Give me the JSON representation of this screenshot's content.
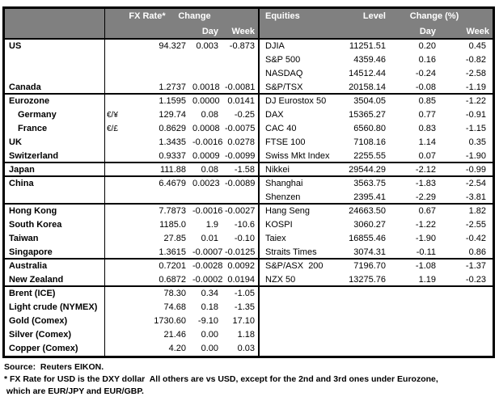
{
  "colors": {
    "header_bg": "#808080",
    "header_text": "#ffffff",
    "border": "#000000",
    "text": "#000000",
    "background": "#ffffff"
  },
  "fx_table": {
    "header": {
      "rate": "FX Rate*",
      "change": "Change",
      "day": "Day",
      "week": "Week"
    },
    "group_end_rows": [
      3,
      8,
      9,
      11,
      15,
      17
    ],
    "rows": [
      {
        "name": "US",
        "sym": "",
        "rate": "94.327",
        "day": "0.003",
        "week": "-0.873"
      },
      {
        "name": "",
        "sym": "",
        "rate": "",
        "day": "",
        "week": ""
      },
      {
        "name": "",
        "sym": "",
        "rate": "",
        "day": "",
        "week": ""
      },
      {
        "name": "Canada",
        "sym": "",
        "rate": "1.2737",
        "day": "0.0018",
        "week": "-0.0081"
      },
      {
        "name": "Eurozone",
        "sym": "",
        "rate": "1.1595",
        "day": "0.0000",
        "week": "0.0141"
      },
      {
        "name": "Germany",
        "sym": "€/¥",
        "rate": "129.74",
        "day": "0.08",
        "week": "-0.25",
        "indent": true
      },
      {
        "name": "France",
        "sym": "€/£",
        "rate": "0.8629",
        "day": "0.0008",
        "week": "-0.0075",
        "indent": true
      },
      {
        "name": "UK",
        "sym": "",
        "rate": "1.3435",
        "day": "-0.0016",
        "week": "0.0278"
      },
      {
        "name": "Switzerland",
        "sym": "",
        "rate": "0.9337",
        "day": "0.0009",
        "week": "-0.0099"
      },
      {
        "name": "Japan",
        "sym": "",
        "rate": "111.88",
        "day": "0.08",
        "week": "-1.58"
      },
      {
        "name": "China",
        "sym": "",
        "rate": "6.4679",
        "day": "0.0023",
        "week": "-0.0089"
      },
      {
        "name": "",
        "sym": "",
        "rate": "",
        "day": "",
        "week": ""
      },
      {
        "name": "Hong Kong",
        "sym": "",
        "rate": "7.7873",
        "day": "-0.0016",
        "week": "-0.0027"
      },
      {
        "name": "South Korea",
        "sym": "",
        "rate": "1185.0",
        "day": "1.9",
        "week": "-10.6"
      },
      {
        "name": "Taiwan",
        "sym": "",
        "rate": "27.85",
        "day": "0.01",
        "week": "-0.10"
      },
      {
        "name": "Singapore",
        "sym": "",
        "rate": "1.3615",
        "day": "-0.0007",
        "week": "-0.0125"
      },
      {
        "name": "Australia",
        "sym": "",
        "rate": "0.7201",
        "day": "-0.0028",
        "week": "0.0092"
      },
      {
        "name": "New Zealand",
        "sym": "",
        "rate": "0.6872",
        "day": "-0.0002",
        "week": "0.0194"
      },
      {
        "name": "Brent (ICE)",
        "sym": "",
        "rate": "78.30",
        "day": "0.34",
        "week": "-1.05"
      },
      {
        "name": "Light crude (NYMEX)",
        "sym": "",
        "rate": "74.68",
        "day": "0.18",
        "week": "-1.35"
      },
      {
        "name": "Gold (Comex)",
        "sym": "",
        "rate": "1730.60",
        "day": "-9.10",
        "week": "17.10"
      },
      {
        "name": "Silver (Comex)",
        "sym": "",
        "rate": "21.46",
        "day": "0.00",
        "week": "1.18"
      },
      {
        "name": "Copper (Comex)",
        "sym": "",
        "rate": "4.20",
        "day": "0.00",
        "week": "0.03"
      }
    ]
  },
  "equities_table": {
    "header": {
      "name": "Equities",
      "level": "Level",
      "change": "Change (%)",
      "day": "Day",
      "week": "Week"
    },
    "rows": [
      {
        "name": "DJIA",
        "level": "11251.51",
        "day": "0.20",
        "week": "0.45"
      },
      {
        "name": "S&P 500",
        "level": "4359.46",
        "day": "0.16",
        "week": "-0.82"
      },
      {
        "name": "NASDAQ",
        "level": "14512.44",
        "day": "-0.24",
        "week": "-2.58"
      },
      {
        "name": "S&P/TSX",
        "level": "20158.14",
        "day": "-0.08",
        "week": "-1.19"
      },
      {
        "name": "DJ Eurostox 50",
        "level": "3504.05",
        "day": "0.85",
        "week": "-1.22"
      },
      {
        "name": "DAX",
        "level": "15365.27",
        "day": "0.77",
        "week": "-0.91"
      },
      {
        "name": "CAC 40",
        "level": "6560.80",
        "day": "0.83",
        "week": "-1.15"
      },
      {
        "name": "FTSE 100",
        "level": "7108.16",
        "day": "1.14",
        "week": "0.35"
      },
      {
        "name": "Swiss Mkt Index",
        "level": "2255.55",
        "day": "0.07",
        "week": "-1.90"
      },
      {
        "name": "Nikkei",
        "level": "29544.29",
        "day": "-2.12",
        "week": "-0.99"
      },
      {
        "name": "Shanghai",
        "level": "3563.75",
        "day": "-1.83",
        "week": "-2.54"
      },
      {
        "name": "Shenzen",
        "level": "2395.41",
        "day": "-2.29",
        "week": "-3.81"
      },
      {
        "name": "Hang Seng",
        "level": "24663.50",
        "day": "0.67",
        "week": "1.82"
      },
      {
        "name": "KOSPI",
        "level": "3060.27",
        "day": "-1.22",
        "week": "-2.55"
      },
      {
        "name": "Taiex",
        "level": "16855.46",
        "day": "-1.90",
        "week": "-0.42"
      },
      {
        "name": "Straits Times",
        "level": "3074.31",
        "day": "-0.11",
        "week": "0.86"
      },
      {
        "name": "S&P/ASX  200",
        "level": "7196.70",
        "day": "-1.08",
        "week": "-1.37"
      },
      {
        "name": "NZX 50",
        "level": "13275.76",
        "day": "1.19",
        "week": "-0.23"
      },
      {
        "name": "",
        "level": "",
        "day": "",
        "week": ""
      },
      {
        "name": "",
        "level": "",
        "day": "",
        "week": ""
      },
      {
        "name": "",
        "level": "",
        "day": "",
        "week": ""
      },
      {
        "name": "",
        "level": "",
        "day": "",
        "week": ""
      },
      {
        "name": "",
        "level": "",
        "day": "",
        "week": ""
      }
    ]
  },
  "footer": {
    "source": "Source:  Reuters EIKON.",
    "note_line1": "* FX Rate for USD is the DXY dollar  All others are vs USD, except for the 2nd and 3rd ones under Eurozone,",
    "note_line2": " which are EUR/JPY and EUR/GBP."
  }
}
